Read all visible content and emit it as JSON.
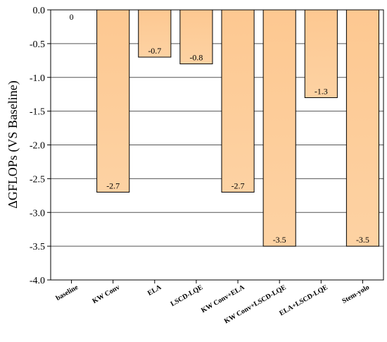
{
  "chart_data": {
    "type": "bar",
    "title": "",
    "xlabel": "",
    "ylabel": "ΔGFLOPs (VS Baseline)",
    "ylim": [
      -4.0,
      0.0
    ],
    "yticks": [
      0.0,
      -0.5,
      -1.0,
      -1.5,
      -2.0,
      -2.5,
      -3.0,
      -3.5,
      -4.0
    ],
    "ytick_labels": [
      "0.0",
      "-0.5",
      "-1.0",
      "-1.5",
      "-2.0",
      "-2.5",
      "-3.0",
      "-3.5",
      "-4.0"
    ],
    "grid": true,
    "categories": [
      "baseline",
      "KW Conv",
      "ELA",
      "LSCD-LQE",
      "KW Conv+ELA",
      "KW Conv+LSCD-LQE",
      "ELA+LSCD-LQE",
      "Stem-yolo"
    ],
    "values": [
      0,
      -2.7,
      -0.7,
      -0.8,
      -2.7,
      -3.5,
      -1.3,
      -3.5
    ],
    "data_labels": [
      "0",
      "-2.7",
      "-0.7",
      "-0.8",
      "-2.7",
      "-3.5",
      "-1.3",
      "-3.5"
    ],
    "colors": {
      "bar_top": "#fdc891",
      "bar_bottom": "#fdd2a3",
      "bar_edge": "#000000"
    }
  }
}
